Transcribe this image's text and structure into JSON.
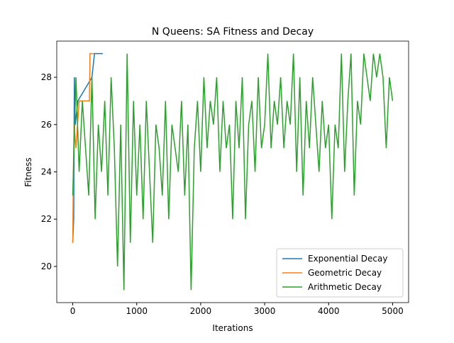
{
  "chart_data": {
    "type": "line",
    "title": "N Queens: SA Fitness and Decay",
    "x_label": "Iterations",
    "y_label": "Fitness",
    "xlim": [
      -250,
      5250
    ],
    "ylim": [
      18.47,
      29.53
    ],
    "xticks": [
      0,
      1000,
      2000,
      3000,
      4000,
      5000
    ],
    "yticks": [
      20,
      22,
      24,
      26,
      28
    ],
    "legend": "lower right",
    "series": [
      {
        "name": "Exponential Decay",
        "color": "#1f77b4",
        "x": [
          0,
          15,
          25,
          40,
          80,
          300,
          340,
          470
        ],
        "values": [
          21,
          22,
          28,
          26,
          27,
          28,
          29,
          29
        ]
      },
      {
        "name": "Geometric Decay",
        "color": "#ff7f0e",
        "x": [
          0,
          10,
          20,
          50,
          100,
          260,
          270,
          330
        ],
        "values": [
          21,
          24,
          26,
          25,
          27,
          27,
          29,
          29
        ]
      },
      {
        "name": "Arithmetic Decay",
        "color": "#2ca02c",
        "x": [
          0,
          50,
          100,
          150,
          200,
          250,
          300,
          350,
          400,
          450,
          500,
          550,
          600,
          650,
          700,
          750,
          800,
          850,
          900,
          950,
          1000,
          1050,
          1100,
          1150,
          1200,
          1250,
          1300,
          1350,
          1400,
          1450,
          1500,
          1550,
          1600,
          1650,
          1700,
          1750,
          1800,
          1850,
          1900,
          1950,
          2000,
          2050,
          2100,
          2150,
          2200,
          2250,
          2300,
          2350,
          2400,
          2450,
          2500,
          2550,
          2600,
          2650,
          2700,
          2750,
          2800,
          2850,
          2900,
          2950,
          3000,
          3050,
          3100,
          3150,
          3200,
          3250,
          3300,
          3350,
          3400,
          3450,
          3500,
          3550,
          3600,
          3650,
          3700,
          3750,
          3800,
          3850,
          3900,
          3950,
          4000,
          4050,
          4100,
          4150,
          4200,
          4250,
          4300,
          4350,
          4400,
          4450,
          4500,
          4550,
          4600,
          4650,
          4700,
          4750,
          4800,
          4850,
          4900,
          4950,
          5000
        ],
        "values": [
          23,
          28,
          24,
          27,
          25,
          23,
          28,
          22,
          26,
          24,
          27,
          23,
          28,
          25,
          20,
          26,
          19,
          29,
          21,
          27,
          23,
          26,
          22,
          27,
          24,
          21,
          26,
          25,
          23,
          27,
          22,
          26,
          25,
          24,
          27,
          23,
          26,
          19,
          25,
          27,
          24,
          28,
          25,
          27,
          26,
          28,
          24,
          27,
          25,
          26,
          22,
          27,
          25,
          28,
          22,
          26,
          27,
          24,
          28,
          25,
          26,
          29,
          25,
          27,
          26,
          28,
          25,
          27,
          26,
          29,
          24,
          28,
          23,
          27,
          25,
          28,
          26,
          24,
          27,
          25,
          26,
          22,
          26,
          25,
          29,
          24,
          27,
          29,
          23,
          27,
          26,
          29,
          28,
          27,
          29,
          28,
          29,
          28,
          25,
          28,
          27
        ]
      }
    ]
  }
}
